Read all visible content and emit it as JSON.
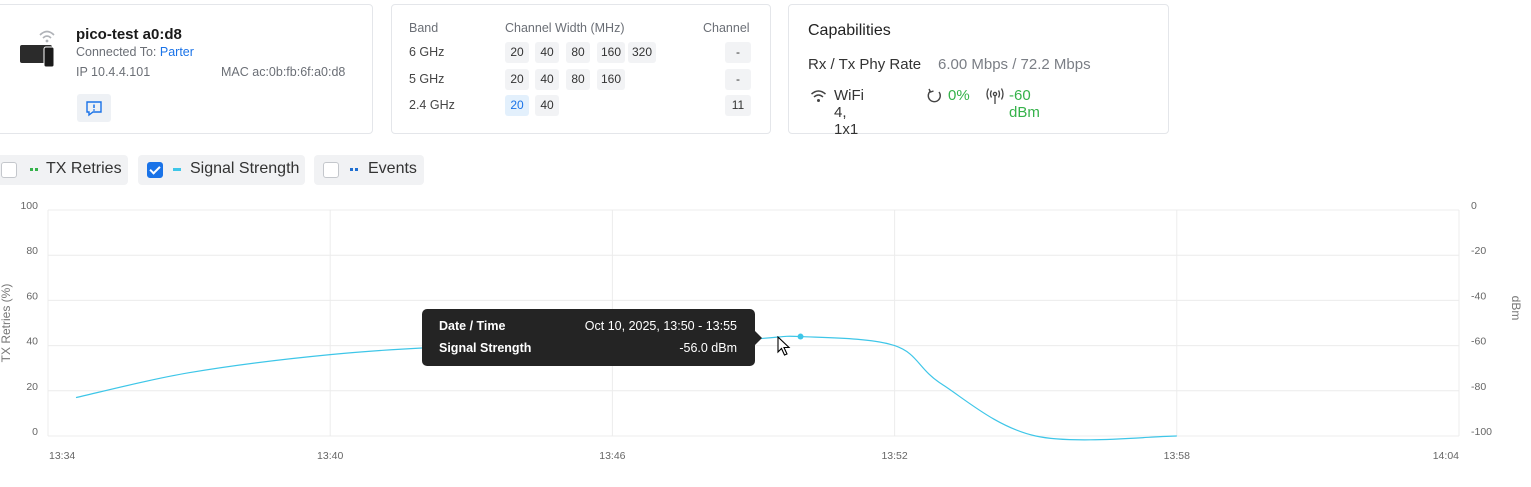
{
  "device": {
    "name": "pico-test a0:d8",
    "connected_label": "Connected To:",
    "connected_ap": "Parter",
    "ip": "IP 10.4.4.101",
    "mac": "MAC ac:0b:fb:6f:a0:d8",
    "icon": "device-icon"
  },
  "bands": {
    "headers": {
      "band": "Band",
      "width": "Channel Width (MHz)",
      "channel": "Channel"
    },
    "rows": [
      {
        "band": "6 GHz",
        "widths": [
          "20",
          "40",
          "80",
          "160",
          "320"
        ],
        "channel": "-"
      },
      {
        "band": "5 GHz",
        "widths": [
          "20",
          "40",
          "80",
          "160"
        ],
        "channel": "-"
      },
      {
        "band": "2.4 GHz",
        "widths": [
          "20",
          "40"
        ],
        "active_width": "20",
        "channel": "11"
      }
    ]
  },
  "capabilities": {
    "title": "Capabilities",
    "rate_label": "Rx / Tx Phy Rate",
    "rate_value": "6.00 Mbps / 72.2 Mbps",
    "wifi": "WiFi 4, 1x1",
    "retries": "0%",
    "signal": "-60 dBm"
  },
  "toggles": [
    {
      "label": "TX Retries",
      "checked": false,
      "color": "#35b24a"
    },
    {
      "label": "Signal Strength",
      "checked": true,
      "color": "#3ec6e8"
    },
    {
      "label": "Events",
      "checked": false,
      "color": "#1f6fd1"
    }
  ],
  "chart_data": {
    "type": "line",
    "x_ticks": [
      "13:34",
      "13:40",
      "13:46",
      "13:52",
      "13:58",
      "14:04"
    ],
    "y_left_label": "TX Retries (%)",
    "y_left_ticks": [
      "100",
      "80",
      "60",
      "40",
      "20",
      "0"
    ],
    "y_left_range": [
      0,
      100
    ],
    "y_right_label": "dBm",
    "y_right_ticks": [
      "0",
      "-20",
      "-40",
      "-60",
      "-80",
      "-100"
    ],
    "y_right_range": [
      -100,
      0
    ],
    "grid": true,
    "series": [
      {
        "name": "Signal Strength",
        "axis": "right",
        "color": "#3ec6e8",
        "x": [
          "13:34",
          "13:37",
          "13:40",
          "13:43",
          "13:46",
          "13:49",
          "13:50",
          "13:52",
          "13:53",
          "13:55",
          "13:58"
        ],
        "y": [
          -83,
          -72,
          -64,
          -60,
          -59,
          -57,
          -56,
          -60,
          -77,
          -100,
          -100
        ]
      }
    ]
  },
  "tooltip": {
    "date_label": "Date / Time",
    "date_value": "Oct 10, 2025, 13:50 - 13:55",
    "signal_label": "Signal Strength",
    "signal_value": "-56.0 dBm"
  }
}
